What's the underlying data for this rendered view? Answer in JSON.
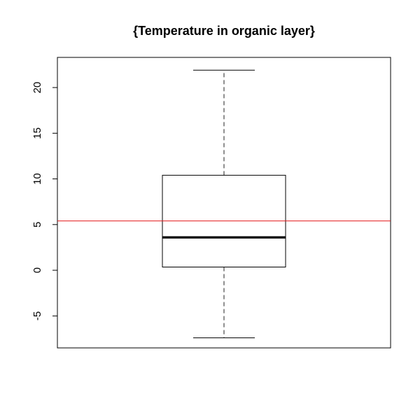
{
  "chart_data": {
    "type": "box",
    "title": "{Temperature in organic layer}",
    "xlabel": "",
    "ylabel": "",
    "ylim": [
      -8.5,
      23.3
    ],
    "yticks": [
      -5,
      0,
      5,
      10,
      15,
      20
    ],
    "box": {
      "whisker_low": -7.4,
      "q1": 0.35,
      "median": 3.6,
      "q3": 10.4,
      "whisker_high": 21.9
    },
    "reference_line": {
      "value": 5.4,
      "color": "#e41a1c"
    },
    "colors": {
      "box": "#000000",
      "whisker": "#555555"
    }
  }
}
